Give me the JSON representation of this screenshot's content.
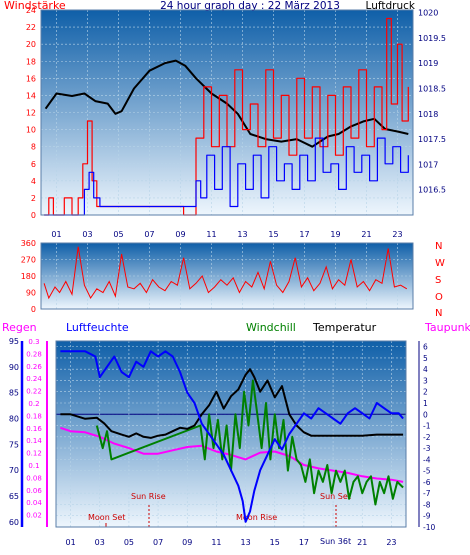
{
  "title": "24 hour graph day : 22 März 2013",
  "colors": {
    "red": "#ff0000",
    "blue": "#0000ff",
    "black": "#000000",
    "green": "#008000",
    "magenta": "#ff00ff",
    "navy": "#000080",
    "darkred": "#cc0000",
    "gridline": "#b8d4e8",
    "sky_top": "#0f5fa8",
    "sky_bottom": "#eef6fd"
  },
  "chart_data": [
    {
      "type": "line",
      "panel": "wind-pressure",
      "title": "24 hour graph day : 22 März 2013",
      "left_label": "Windstärke",
      "right_label": "Luftdruck",
      "x_ticks": [
        "01",
        "03",
        "05",
        "07",
        "09",
        "11",
        "13",
        "15",
        "17",
        "19",
        "21",
        "23"
      ],
      "y_left_ticks": [
        "0",
        "2",
        "4",
        "6",
        "8",
        "10",
        "12",
        "14",
        "16",
        "18",
        "20",
        "22",
        "24"
      ],
      "y_left_range": [
        0,
        24
      ],
      "y_right_ticks": [
        "1016.5",
        "1017",
        "1017.5",
        "1018",
        "1018.5",
        "1019",
        "1019.5",
        "1020"
      ],
      "y_right_range": [
        1016.0,
        1020.05
      ],
      "x_range": [
        0,
        24
      ],
      "grid": true,
      "series": [
        {
          "color_key": "black",
          "axis": "right",
          "x": [
            0.3,
            1.0,
            2.0,
            2.8,
            3.5,
            4.3,
            4.8,
            5.2,
            6.0,
            7.0,
            8.0,
            8.7,
            9.3,
            10.0,
            11.0,
            12.0,
            12.7,
            13.5,
            14.5,
            15.5,
            16.5,
            17.5,
            18.5,
            19.2,
            20.0,
            20.8,
            21.5,
            22.2,
            23.0,
            23.7
          ],
          "y": [
            1018.1,
            1018.4,
            1018.35,
            1018.4,
            1018.25,
            1018.2,
            1018.0,
            1018.05,
            1018.5,
            1018.85,
            1019.0,
            1019.05,
            1018.95,
            1018.7,
            1018.4,
            1018.2,
            1018.0,
            1017.6,
            1017.5,
            1017.45,
            1017.5,
            1017.35,
            1017.55,
            1017.6,
            1017.75,
            1017.85,
            1017.9,
            1017.7,
            1017.65,
            1017.6
          ]
        },
        {
          "color_key": "red",
          "axis": "left",
          "step": true,
          "x": [
            0.2,
            0.5,
            0.8,
            1.5,
            2.0,
            2.4,
            2.7,
            3.0,
            3.3,
            3.6,
            3.9,
            8.9,
            9.2,
            9.6,
            10.0,
            10.5,
            11.0,
            11.5,
            12.0,
            12.5,
            13.0,
            13.5,
            14.0,
            14.5,
            15.0,
            15.5,
            16.0,
            16.5,
            17.0,
            17.5,
            18.0,
            18.5,
            19.0,
            19.5,
            20.0,
            20.5,
            21.0,
            21.5,
            22.0,
            22.3,
            22.6,
            23.0,
            23.3,
            23.7
          ],
          "y": [
            0,
            2,
            0,
            2,
            0,
            2,
            6,
            11,
            4,
            1,
            1,
            1,
            0,
            0,
            9,
            15,
            8,
            14,
            8,
            17,
            10,
            13,
            8,
            17,
            9,
            14,
            7,
            16,
            9,
            15,
            8,
            14,
            7,
            15,
            9,
            17,
            8,
            15,
            10,
            23,
            13,
            20,
            11,
            15
          ]
        },
        {
          "color_key": "blue",
          "axis": "left",
          "step": true,
          "x": [
            0.2,
            2.5,
            2.8,
            3.1,
            3.4,
            3.8,
            10.0,
            10.3,
            10.7,
            11.2,
            11.7,
            12.2,
            12.7,
            13.2,
            13.7,
            14.2,
            14.7,
            15.2,
            15.7,
            16.2,
            16.7,
            17.2,
            17.7,
            18.2,
            18.7,
            19.2,
            19.7,
            20.2,
            20.7,
            21.2,
            21.7,
            22.2,
            22.7,
            23.2,
            23.7
          ],
          "y": [
            0,
            0,
            3,
            5,
            2,
            1,
            4,
            2,
            7,
            3,
            8,
            1,
            6,
            3,
            7,
            2,
            8,
            4,
            6,
            3,
            7,
            4,
            9,
            5,
            6,
            3,
            8,
            5,
            7,
            4,
            9,
            6,
            8,
            5,
            7
          ]
        }
      ]
    },
    {
      "type": "line",
      "panel": "wind-direction",
      "y_left_ticks": [
        "0",
        "90",
        "180",
        "270",
        "360"
      ],
      "y_left_range": [
        0,
        360
      ],
      "right_labels": [
        "N",
        "W",
        "S",
        "O",
        "N"
      ],
      "grid": true,
      "series": [
        {
          "color_key": "red",
          "x": [
            0.2,
            0.5,
            0.9,
            1.2,
            1.6,
            2.0,
            2.4,
            2.8,
            3.2,
            3.6,
            4.0,
            4.4,
            4.8,
            5.2,
            5.6,
            6.0,
            6.4,
            6.8,
            7.2,
            7.6,
            8.0,
            8.4,
            8.8,
            9.2,
            9.6,
            10.0,
            10.4,
            10.8,
            11.2,
            11.6,
            12.0,
            12.4,
            12.8,
            13.2,
            13.6,
            14.0,
            14.4,
            14.8,
            15.2,
            15.6,
            16.0,
            16.4,
            16.8,
            17.2,
            17.6,
            18.0,
            18.4,
            18.8,
            19.2,
            19.6,
            20.0,
            20.4,
            20.8,
            21.2,
            21.6,
            22.0,
            22.4,
            22.8,
            23.2,
            23.6
          ],
          "y": [
            140,
            60,
            120,
            90,
            150,
            80,
            340,
            130,
            60,
            110,
            90,
            150,
            70,
            300,
            120,
            110,
            140,
            90,
            160,
            120,
            100,
            150,
            130,
            280,
            110,
            140,
            180,
            90,
            120,
            160,
            130,
            170,
            90,
            150,
            120,
            200,
            110,
            260,
            130,
            90,
            150,
            280,
            120,
            170,
            100,
            140,
            230,
            110,
            160,
            130,
            270,
            120,
            150,
            100,
            160,
            140,
            330,
            120,
            130,
            110
          ]
        }
      ]
    },
    {
      "type": "line",
      "panel": "humidity-temperature",
      "legend": [
        "Regen",
        "Luftfeuchte",
        "Windchill",
        "Temperatur",
        "Taupunkt"
      ],
      "y_rain_ticks": [
        "0.02",
        "0.04",
        "0.06",
        "0.08",
        "0.1",
        "0.12",
        "0.14",
        "0.16",
        "0.18",
        "0.2",
        "0.22",
        "0.24",
        "0.26",
        "0.28",
        "0.3"
      ],
      "y_rain_range": [
        0,
        0.3
      ],
      "y_hum_ticks": [
        "60",
        "65",
        "70",
        "75",
        "80",
        "85",
        "90",
        "95"
      ],
      "y_hum_range": [
        59,
        95
      ],
      "y_temp_ticks": [
        "-10",
        "-9",
        "-8",
        "-7",
        "-6",
        "-5",
        "-4",
        "-3",
        "-2",
        "-1",
        "0",
        "1",
        "2",
        "3",
        "4",
        "5",
        "6"
      ],
      "y_temp_range": [
        -10,
        6.5
      ],
      "x_ticks": [
        "01",
        "03",
        "05",
        "07",
        "09",
        "11",
        "13",
        "15",
        "17",
        "19",
        "21",
        "23"
      ],
      "annotations": [
        "Moon Set",
        "Sun Rise",
        "Moon Rise",
        "Sun Set",
        "Sun 36t"
      ],
      "series": [
        {
          "color_key": "blue",
          "name": "Luftfeuchte",
          "axis": "hum",
          "x": [
            0.3,
            1.0,
            2.0,
            2.7,
            3.0,
            3.5,
            4.0,
            4.5,
            5.0,
            5.5,
            6.0,
            6.5,
            7.0,
            7.5,
            8.0,
            8.5,
            9.0,
            9.5,
            10.0,
            10.5,
            11.0,
            11.5,
            12.0,
            12.5,
            12.8,
            13.0,
            13.3,
            13.6,
            14.0,
            14.5,
            15.0,
            15.5,
            16.0,
            16.5,
            17.0,
            17.5,
            18.0,
            18.5,
            19.0,
            19.5,
            20.0,
            20.5,
            21.0,
            21.5,
            22.0,
            22.5,
            23.0,
            23.5,
            23.8
          ],
          "y": [
            93,
            93,
            93,
            92,
            88,
            90,
            92,
            89,
            88,
            91,
            90,
            93,
            92,
            93,
            92,
            89,
            85,
            83,
            79,
            77,
            75,
            73,
            70,
            67,
            64,
            60,
            62,
            66,
            70,
            73,
            76,
            74,
            77,
            79,
            81,
            80,
            82,
            81,
            80,
            79,
            81,
            82,
            81,
            80,
            83,
            82,
            81,
            81,
            80
          ]
        },
        {
          "color_key": "black",
          "name": "Temperatur",
          "axis": "temp",
          "x": [
            0.3,
            1.0,
            2.0,
            2.8,
            3.3,
            3.8,
            4.5,
            5.0,
            5.5,
            6.0,
            6.5,
            7.0,
            7.5,
            8.0,
            8.5,
            9.0,
            9.5,
            10.0,
            10.5,
            11.0,
            11.5,
            12.0,
            12.5,
            13.0,
            13.3,
            13.6,
            14.0,
            14.5,
            15.0,
            15.5,
            16.0,
            16.5,
            17.0,
            17.5,
            18.0,
            19.0,
            20.0,
            21.0,
            22.0,
            23.0,
            23.8
          ],
          "y": [
            0,
            0,
            -0.4,
            -0.3,
            -0.8,
            -1.5,
            -1.8,
            -2.0,
            -1.7,
            -2.0,
            -2.1,
            -1.9,
            -1.8,
            -1.5,
            -1.2,
            -1.3,
            -1.0,
            0.0,
            0.8,
            2.0,
            0.5,
            1.6,
            2.2,
            3.5,
            4.0,
            3.3,
            2.0,
            3.0,
            1.5,
            2.5,
            0.0,
            -1.0,
            -1.6,
            -1.9,
            -1.9,
            -1.9,
            -1.9,
            -1.9,
            -1.8,
            -1.8,
            -1.8
          ]
        },
        {
          "color_key": "green",
          "name": "Windchill",
          "axis": "temp",
          "x": [
            2.8,
            3.2,
            3.5,
            3.8,
            9.9,
            10.2,
            10.5,
            10.8,
            11.1,
            11.4,
            11.7,
            12.0,
            12.3,
            12.6,
            12.9,
            13.2,
            13.5,
            13.8,
            14.1,
            14.4,
            14.7,
            15.0,
            15.3,
            15.6,
            15.9,
            16.2,
            16.5,
            16.8,
            17.1,
            17.4,
            17.7,
            18.0,
            18.3,
            18.6,
            18.9,
            19.2,
            19.5,
            19.8,
            20.1,
            20.4,
            20.7,
            21.0,
            21.3,
            21.6,
            21.9,
            22.2,
            22.5,
            22.8,
            23.1,
            23.4,
            23.8
          ],
          "y": [
            -1,
            -3,
            -1.5,
            -4,
            -1,
            -4,
            0,
            -3,
            -0.5,
            -4,
            -1,
            -5,
            0,
            -3,
            2,
            -1,
            3,
            0,
            -3,
            1,
            -4,
            0,
            -3,
            -0.5,
            -5,
            -2,
            -4,
            -4.5,
            -6,
            -4,
            -7,
            -5,
            -6,
            -4.5,
            -7,
            -5,
            -6,
            -5,
            -7.5,
            -6,
            -5.5,
            -7,
            -6,
            -5.5,
            -8,
            -6,
            -7,
            -5.5,
            -7.5,
            -6,
            -6.5
          ]
        },
        {
          "color_key": "magenta",
          "name": "Taupunkt",
          "axis": "temp",
          "x": [
            0.3,
            1.0,
            2.0,
            3.0,
            4.0,
            5.0,
            6.0,
            7.0,
            8.0,
            9.0,
            10.0,
            11.0,
            12.0,
            13.0,
            14.0,
            15.0,
            16.0,
            17.0,
            18.0,
            19.0,
            20.0,
            21.0,
            22.0,
            23.0,
            23.8
          ],
          "y": [
            -1.2,
            -1.5,
            -1.6,
            -2.0,
            -2.6,
            -3.0,
            -3.5,
            -3.5,
            -3.2,
            -2.9,
            -2.8,
            -3.3,
            -3.6,
            -4.0,
            -3.4,
            -3.3,
            -3.7,
            -4.5,
            -4.8,
            -5.0,
            -5.2,
            -5.5,
            -5.7,
            -5.8,
            -6.0
          ]
        }
      ]
    }
  ]
}
